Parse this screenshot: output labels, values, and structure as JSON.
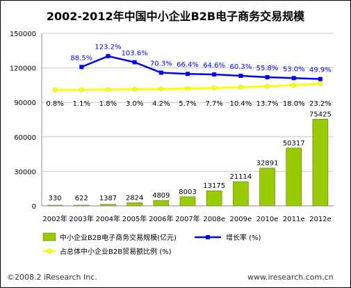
{
  "chart_data": {
    "type": "bar",
    "title": "2002-2012年中国中小企业B2B电子商务交易规模",
    "categories": [
      "2002年",
      "2003年",
      "2004年",
      "2005年",
      "2006年",
      "2007年",
      "2008e",
      "2009e",
      "2010e",
      "2011e",
      "2012e"
    ],
    "ylim": [
      0,
      150000
    ],
    "yticks": [
      "150000",
      "120000",
      "90000",
      "60000",
      "30000",
      "0"
    ],
    "ytick_values": [
      150000,
      120000,
      90000,
      60000,
      30000,
      0
    ],
    "grid": true,
    "legend_position": "bottom",
    "series": [
      {
        "name": "中小企业B2B电子商务交易规模(亿元)",
        "type": "bar",
        "color": "#99cc00",
        "values": [
          330,
          622,
          1387,
          2824,
          4809,
          8003,
          13175,
          21114,
          32891,
          50317,
          75425
        ],
        "labels": [
          "330",
          "622",
          "1387",
          "2824",
          "4809",
          "8003",
          "13175",
          "21114",
          "32891",
          "50317",
          "75425"
        ]
      },
      {
        "name": "增长率 (%)",
        "type": "line",
        "color": "#0000ff",
        "values": [
          null,
          88.5,
          123.2,
          103.6,
          70.3,
          66.4,
          64.6,
          60.3,
          55.8,
          53.0,
          49.9
        ],
        "labels": [
          "",
          "88.5%",
          "123.2%",
          "103.6%",
          "70.3%",
          "66.4%",
          "64.6%",
          "60.3%",
          "55.8%",
          "53.0%",
          "49.9%"
        ]
      },
      {
        "name": "占总体中小企业B2B贸易额比例 (%)",
        "type": "line",
        "color": "#ffff00",
        "values": [
          0.8,
          1.1,
          1.8,
          3.0,
          4.2,
          5.7,
          7.7,
          10.4,
          13.7,
          18.0,
          23.2
        ],
        "labels": [
          "0.8%",
          "1.1%",
          "1.8%",
          "3.0%",
          "4.2%",
          "5.7%",
          "7.7%",
          "10.4%",
          "13.7%",
          "18.0%",
          "23.2%"
        ]
      }
    ]
  },
  "footer": {
    "left": "©2008.2 iResearch Inc.",
    "right": "www.iresearch.com.cn"
  }
}
